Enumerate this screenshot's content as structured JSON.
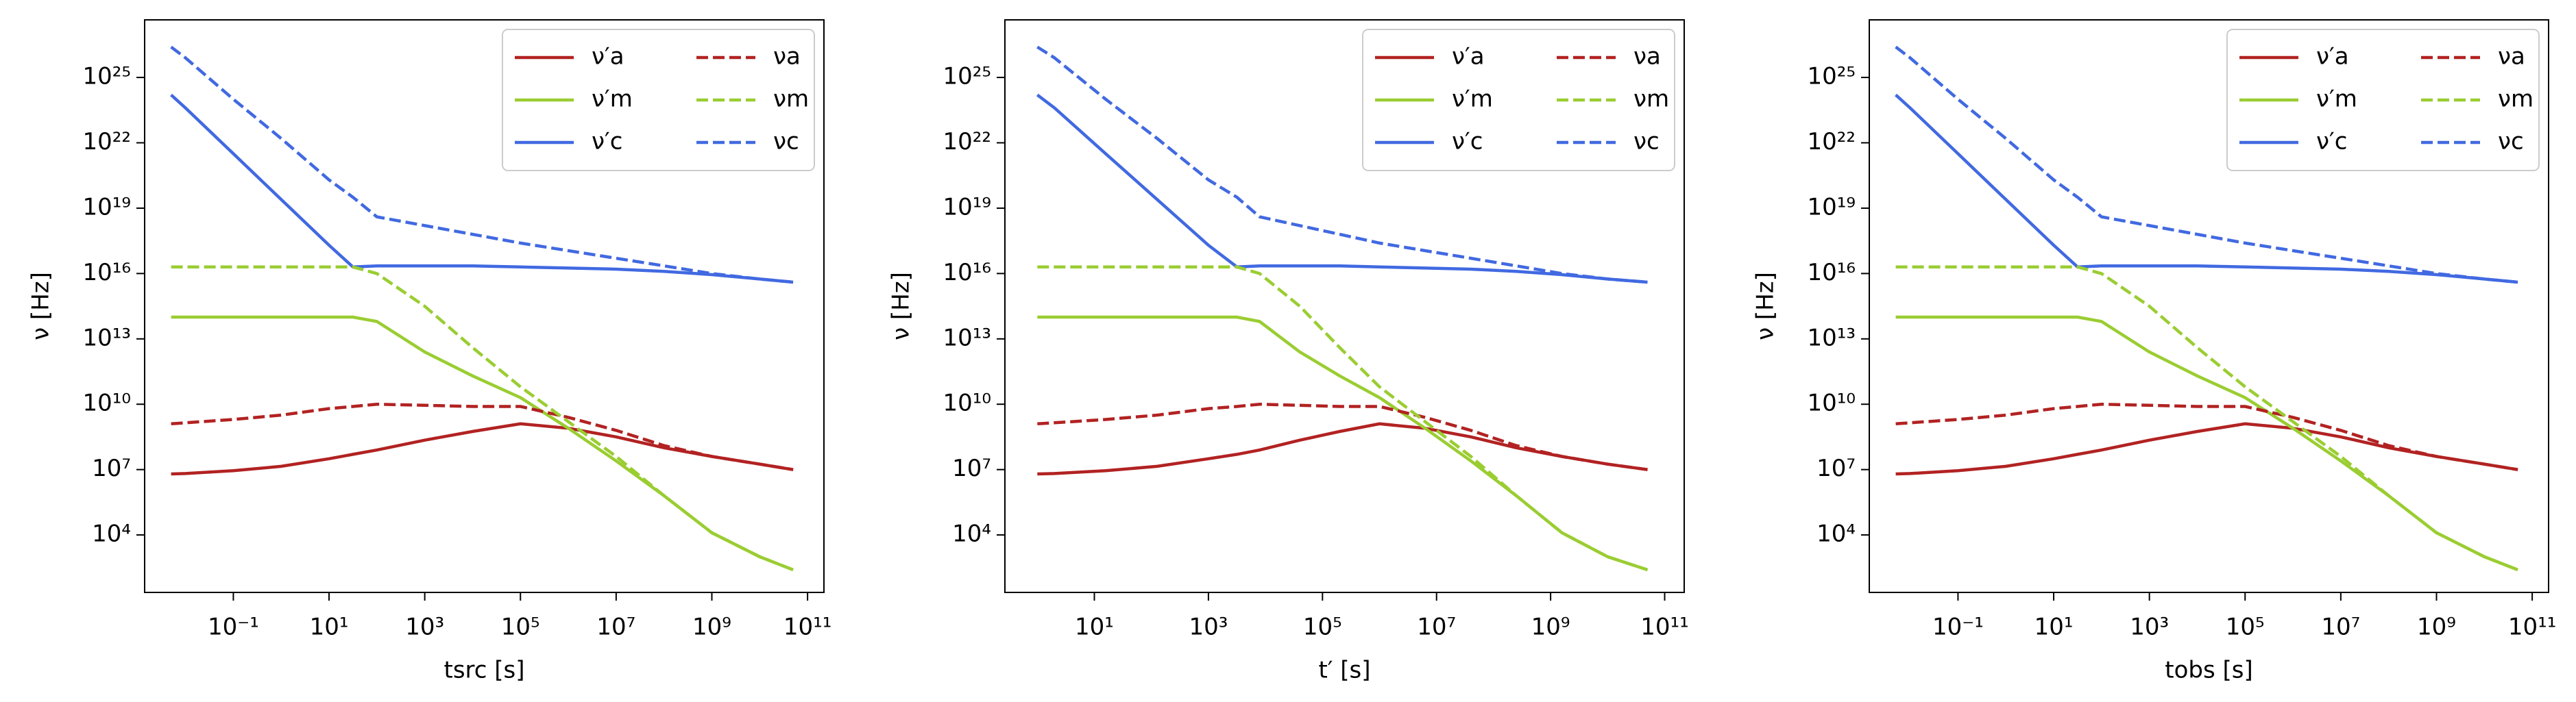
{
  "chart_data": [
    {
      "type": "line",
      "xscale": "log",
      "yscale": "log",
      "xlabel": "tsrc [s]",
      "ylabel": "ν [Hz]",
      "legend": "upper right",
      "legend_ncol": 2,
      "xlim": [
        0.0014,
        220000000000.0
      ],
      "ylim": [
        23.0,
        4.4e+27
      ],
      "xticks": [
        {
          "value": 0.1,
          "label": "10⁻¹"
        },
        {
          "value": 10,
          "label": "10¹"
        },
        {
          "value": 1000.0,
          "label": "10³"
        },
        {
          "value": 100000.0,
          "label": "10⁵"
        },
        {
          "value": 10000000.0,
          "label": "10⁷"
        },
        {
          "value": 1000000000.0,
          "label": "10⁹"
        },
        {
          "value": 100000000000.0,
          "label": "10¹¹"
        }
      ],
      "yticks": [
        {
          "value": 10000.0,
          "label": "10⁴"
        },
        {
          "value": 10000000.0,
          "label": "10⁷"
        },
        {
          "value": 10000000000.0,
          "label": "10¹⁰"
        },
        {
          "value": 10000000000000.0,
          "label": "10¹³"
        },
        {
          "value": 1e+16,
          "label": "10¹⁶"
        },
        {
          "value": 1e+19,
          "label": "10¹⁹"
        },
        {
          "value": 1e+22,
          "label": "10²²"
        },
        {
          "value": 1e+25,
          "label": "10²⁵"
        }
      ],
      "x": [
        0.005,
        0.01,
        0.1,
        1,
        10,
        31.6,
        100,
        1000.0,
        10000.0,
        100000.0,
        1000000.0,
        10000000.0,
        100000000.0,
        1000000000.0,
        10000000000.0,
        50000000000.0
      ],
      "series": [
        {
          "name": "ν′a",
          "color": "#b22222",
          "dash": false,
          "values": [
            6300000.0,
            6600000.0,
            8900000.0,
            14100000.0,
            31600000.0,
            50000000.0,
            79000000.0,
            224000000.0,
            560000000.0,
            1260000000.0,
            790000000.0,
            316000000.0,
            100000000.0,
            40000000.0,
            17800000.0,
            10000000.0
          ]
        },
        {
          "name": "ν′m",
          "color": "#9acd32",
          "dash": false,
          "values": [
            100000000000000.0,
            100000000000000.0,
            100000000000000.0,
            100000000000000.0,
            100000000000000.0,
            100000000000000.0,
            63000000000000.0,
            2500000000000.0,
            200000000000.0,
            20000000000.0,
            790000000.0,
            25000000.0,
            630000.0,
            12600.0,
            1000.0,
            250.0
          ]
        },
        {
          "name": "ν′c",
          "color": "#4169e1",
          "dash": false,
          "values": [
            1.58e+24,
            4e+23,
            3.16e+21,
            2.5e+19,
            2e+17,
            2e+16,
            2.24e+16,
            2.24e+16,
            2.24e+16,
            2e+16,
            1.78e+16,
            1.58e+16,
            1.26e+16,
            8900000000000000.0,
            5600000000000000.0,
            4000000000000000.0
          ]
        },
        {
          "name": "νa",
          "color": "#b22222",
          "dash": true,
          "values": [
            1260000000.0,
            1410000000.0,
            2000000000.0,
            3160000000.0,
            6300000000.0,
            7900000000.0,
            10000000000.0,
            8900000000.0,
            7900000000.0,
            7900000000.0,
            2500000000.0,
            630000000.0,
            126000000.0,
            40000000.0,
            17800000.0,
            10000000.0
          ]
        },
        {
          "name": "νm",
          "color": "#9acd32",
          "dash": true,
          "values": [
            2e+16,
            2e+16,
            2e+16,
            2e+16,
            2e+16,
            2e+16,
            1e+16,
            316000000000000.0,
            4000000000000.0,
            63000000000.0,
            1580000000.0,
            40000000.0,
            630000.0,
            12600.0,
            1000.0,
            250.0
          ]
        },
        {
          "name": "νc",
          "color": "#4169e1",
          "dash": true,
          "values": [
            2.5e+26,
            7.9e+25,
            1e+24,
            1.58e+22,
            2e+20,
            3.16e+19,
            4e+18,
            1.58e+18,
            6.3e+17,
            2.5e+17,
            1.12e+17,
            5e+16,
            2.24e+16,
            1e+16,
            5600000000000000.0,
            4000000000000000.0
          ]
        }
      ]
    },
    {
      "type": "line",
      "xscale": "log",
      "yscale": "log",
      "xlabel": "t′ [s]",
      "ylabel": "ν [Hz]",
      "legend": "upper right",
      "legend_ncol": 2,
      "xlim": [
        0.27,
        220000000000.0
      ],
      "ylim": [
        23.0,
        4.4e+27
      ],
      "xticks": [
        {
          "value": 10,
          "label": "10¹"
        },
        {
          "value": 1000.0,
          "label": "10³"
        },
        {
          "value": 100000.0,
          "label": "10⁵"
        },
        {
          "value": 10000000.0,
          "label": "10⁷"
        },
        {
          "value": 1000000000.0,
          "label": "10⁹"
        },
        {
          "value": 100000000000.0,
          "label": "10¹¹"
        }
      ],
      "yticks": [
        {
          "value": 10000.0,
          "label": "10⁴"
        },
        {
          "value": 10000000.0,
          "label": "10⁷"
        },
        {
          "value": 10000000000.0,
          "label": "10¹⁰"
        },
        {
          "value": 10000000000000.0,
          "label": "10¹³"
        },
        {
          "value": 1e+16,
          "label": "10¹⁶"
        },
        {
          "value": 1e+19,
          "label": "10¹⁹"
        },
        {
          "value": 1e+22,
          "label": "10²²"
        },
        {
          "value": 1e+25,
          "label": "10²⁵"
        }
      ],
      "x": [
        1,
        2,
        15.8,
        126,
        1000.0,
        3160.0,
        7900.0,
        40000.0,
        200000.0,
        1000000.0,
        6300000.0,
        40000000.0,
        250000000.0,
        1580000000.0,
        10000000000.0,
        50000000000.0
      ],
      "series": [
        {
          "name": "ν′a",
          "color": "#b22222",
          "dash": false,
          "values": [
            6300000.0,
            6600000.0,
            8900000.0,
            14100000.0,
            31600000.0,
            50000000.0,
            79000000.0,
            224000000.0,
            560000000.0,
            1260000000.0,
            790000000.0,
            316000000.0,
            100000000.0,
            40000000.0,
            17800000.0,
            10000000.0
          ]
        },
        {
          "name": "ν′m",
          "color": "#9acd32",
          "dash": false,
          "values": [
            100000000000000.0,
            100000000000000.0,
            100000000000000.0,
            100000000000000.0,
            100000000000000.0,
            100000000000000.0,
            63000000000000.0,
            2500000000000.0,
            200000000000.0,
            20000000000.0,
            790000000.0,
            25000000.0,
            630000.0,
            12600.0,
            1000.0,
            250.0
          ]
        },
        {
          "name": "ν′c",
          "color": "#4169e1",
          "dash": false,
          "values": [
            1.58e+24,
            4e+23,
            3.16e+21,
            2.5e+19,
            2e+17,
            2e+16,
            2.24e+16,
            2.24e+16,
            2.24e+16,
            2e+16,
            1.78e+16,
            1.58e+16,
            1.26e+16,
            8900000000000000.0,
            5600000000000000.0,
            4000000000000000.0
          ]
        },
        {
          "name": "νa",
          "color": "#b22222",
          "dash": true,
          "values": [
            1260000000.0,
            1410000000.0,
            2000000000.0,
            3160000000.0,
            6300000000.0,
            7900000000.0,
            10000000000.0,
            8900000000.0,
            7900000000.0,
            7900000000.0,
            2500000000.0,
            630000000.0,
            126000000.0,
            40000000.0,
            17800000.0,
            10000000.0
          ]
        },
        {
          "name": "νm",
          "color": "#9acd32",
          "dash": true,
          "values": [
            2e+16,
            2e+16,
            2e+16,
            2e+16,
            2e+16,
            2e+16,
            1e+16,
            316000000000000.0,
            4000000000000.0,
            63000000000.0,
            1580000000.0,
            40000000.0,
            630000.0,
            12600.0,
            1000.0,
            250.0
          ]
        },
        {
          "name": "νc",
          "color": "#4169e1",
          "dash": true,
          "values": [
            2.5e+26,
            7.9e+25,
            1e+24,
            1.58e+22,
            2e+20,
            3.16e+19,
            4e+18,
            1.58e+18,
            6.3e+17,
            2.5e+17,
            1.12e+17,
            5e+16,
            2.24e+16,
            1e+16,
            5600000000000000.0,
            4000000000000000.0
          ]
        }
      ]
    },
    {
      "type": "line",
      "xscale": "log",
      "yscale": "log",
      "xlabel": "tobs [s]",
      "ylabel": "ν [Hz]",
      "legend": "upper right",
      "legend_ncol": 2,
      "xlim": [
        0.0014,
        220000000000.0
      ],
      "ylim": [
        23.0,
        4.4e+27
      ],
      "xticks": [
        {
          "value": 0.1,
          "label": "10⁻¹"
        },
        {
          "value": 10,
          "label": "10¹"
        },
        {
          "value": 1000.0,
          "label": "10³"
        },
        {
          "value": 100000.0,
          "label": "10⁵"
        },
        {
          "value": 10000000.0,
          "label": "10⁷"
        },
        {
          "value": 1000000000.0,
          "label": "10⁹"
        },
        {
          "value": 100000000000.0,
          "label": "10¹¹"
        }
      ],
      "yticks": [
        {
          "value": 10000.0,
          "label": "10⁴"
        },
        {
          "value": 10000000.0,
          "label": "10⁷"
        },
        {
          "value": 10000000000.0,
          "label": "10¹⁰"
        },
        {
          "value": 10000000000000.0,
          "label": "10¹³"
        },
        {
          "value": 1e+16,
          "label": "10¹⁶"
        },
        {
          "value": 1e+19,
          "label": "10¹⁹"
        },
        {
          "value": 1e+22,
          "label": "10²²"
        },
        {
          "value": 1e+25,
          "label": "10²⁵"
        }
      ],
      "x": [
        0.005,
        0.01,
        0.1,
        1,
        10,
        31.6,
        100,
        1000.0,
        10000.0,
        100000.0,
        1000000.0,
        10000000.0,
        100000000.0,
        1000000000.0,
        10000000000.0,
        50000000000.0
      ],
      "series": [
        {
          "name": "ν′a",
          "color": "#b22222",
          "dash": false,
          "values": [
            6300000.0,
            6600000.0,
            8900000.0,
            14100000.0,
            31600000.0,
            50000000.0,
            79000000.0,
            224000000.0,
            560000000.0,
            1260000000.0,
            790000000.0,
            316000000.0,
            100000000.0,
            40000000.0,
            17800000.0,
            10000000.0
          ]
        },
        {
          "name": "ν′m",
          "color": "#9acd32",
          "dash": false,
          "values": [
            100000000000000.0,
            100000000000000.0,
            100000000000000.0,
            100000000000000.0,
            100000000000000.0,
            100000000000000.0,
            63000000000000.0,
            2500000000000.0,
            200000000000.0,
            20000000000.0,
            790000000.0,
            25000000.0,
            630000.0,
            12600.0,
            1000.0,
            250.0
          ]
        },
        {
          "name": "ν′c",
          "color": "#4169e1",
          "dash": false,
          "values": [
            1.58e+24,
            4e+23,
            3.16e+21,
            2.5e+19,
            2e+17,
            2e+16,
            2.24e+16,
            2.24e+16,
            2.24e+16,
            2e+16,
            1.78e+16,
            1.58e+16,
            1.26e+16,
            8900000000000000.0,
            5600000000000000.0,
            4000000000000000.0
          ]
        },
        {
          "name": "νa",
          "color": "#b22222",
          "dash": true,
          "values": [
            1260000000.0,
            1410000000.0,
            2000000000.0,
            3160000000.0,
            6300000000.0,
            7900000000.0,
            10000000000.0,
            8900000000.0,
            7900000000.0,
            7900000000.0,
            2500000000.0,
            630000000.0,
            126000000.0,
            40000000.0,
            17800000.0,
            10000000.0
          ]
        },
        {
          "name": "νm",
          "color": "#9acd32",
          "dash": true,
          "values": [
            2e+16,
            2e+16,
            2e+16,
            2e+16,
            2e+16,
            2e+16,
            1e+16,
            316000000000000.0,
            4000000000000.0,
            63000000000.0,
            1580000000.0,
            40000000.0,
            630000.0,
            12600.0,
            1000.0,
            250.0
          ]
        },
        {
          "name": "νc",
          "color": "#4169e1",
          "dash": true,
          "values": [
            2.5e+26,
            7.9e+25,
            1e+24,
            1.58e+22,
            2e+20,
            3.16e+19,
            4e+18,
            1.58e+18,
            6.3e+17,
            2.5e+17,
            1.12e+17,
            5e+16,
            2.24e+16,
            1e+16,
            5600000000000000.0,
            4000000000000000.0
          ]
        }
      ]
    }
  ]
}
